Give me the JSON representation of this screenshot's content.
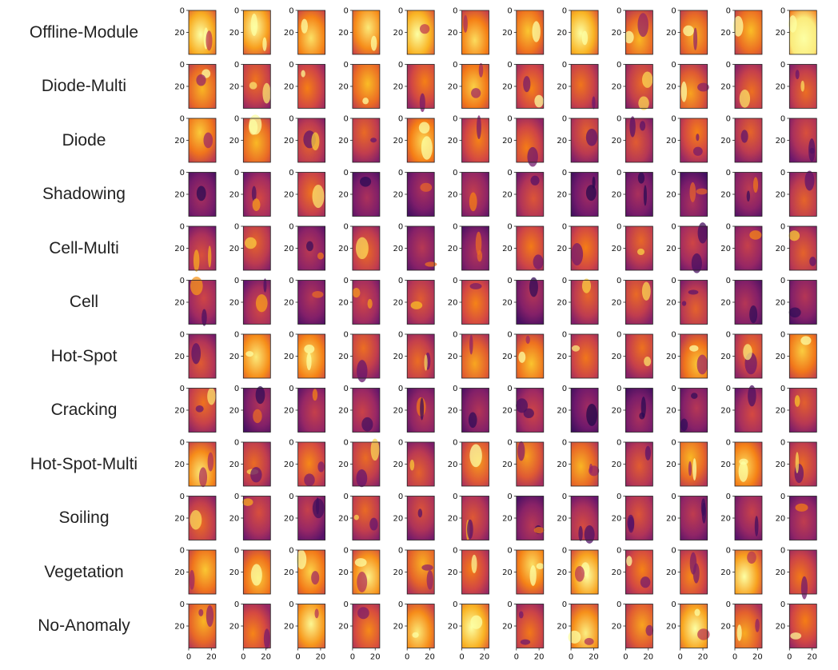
{
  "chart_data": {
    "type": "heatmap",
    "description_rows": [
      "Offline-Module",
      "Diode-Multi",
      "Diode",
      "Shadowing",
      "Cell-Multi",
      "Cell",
      "Hot-Spot",
      "Cracking",
      "Hot-Spot-Multi",
      "Soiling",
      "Vegetation",
      "No-Anomaly"
    ],
    "columns_per_row": 12,
    "colormap": "inferno",
    "y_ticks": [
      0,
      20
    ],
    "x_ticks": [
      0,
      20
    ],
    "x_range": [
      0,
      24
    ],
    "y_range": [
      0,
      40
    ],
    "grid": false
  }
}
